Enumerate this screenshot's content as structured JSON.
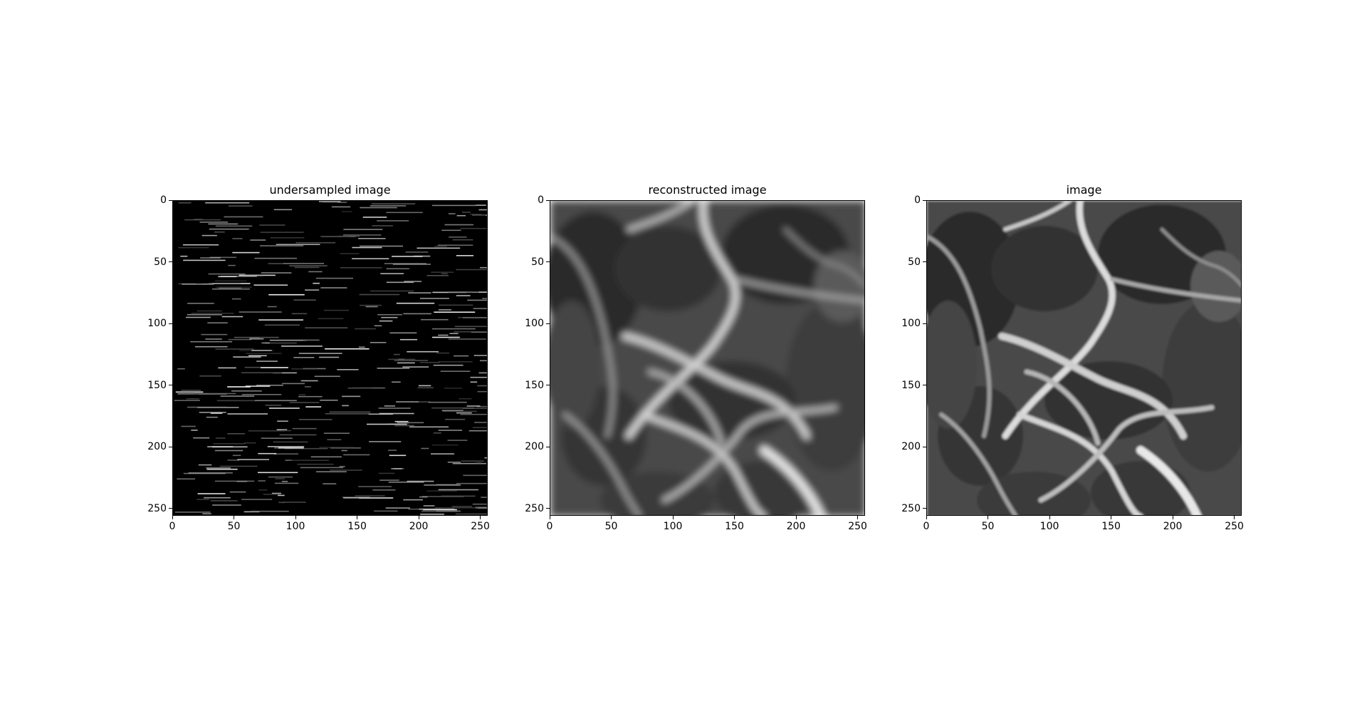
{
  "chart_data": [
    {
      "type": "heatmap",
      "title": "undersampled image",
      "colormap": "gray",
      "background": "#000000",
      "content": "sparse horizontal line segments (masked k-space rows) showing fragments of the image",
      "xlim": [
        0,
        256
      ],
      "ylim": [
        256,
        0
      ],
      "xticks": [
        "0",
        "50",
        "100",
        "150",
        "200",
        "250"
      ],
      "yticks": [
        "0",
        "50",
        "100",
        "150",
        "200",
        "250"
      ],
      "xtick_values": [
        0,
        50,
        100,
        150,
        200,
        250
      ],
      "ytick_values": [
        0,
        50,
        100,
        150,
        200,
        250
      ]
    },
    {
      "type": "heatmap",
      "title": "reconstructed image",
      "colormap": "gray",
      "content": "blurred grayscale texture: dark rounded regions separated by bright ridges",
      "xlim": [
        0,
        256
      ],
      "ylim": [
        256,
        0
      ],
      "xticks": [
        "0",
        "50",
        "100",
        "150",
        "200",
        "250"
      ],
      "yticks": [
        "0",
        "50",
        "100",
        "150",
        "200",
        "250"
      ],
      "xtick_values": [
        0,
        50,
        100,
        150,
        200,
        250
      ],
      "ytick_values": [
        0,
        50,
        100,
        150,
        200,
        250
      ]
    },
    {
      "type": "heatmap",
      "title": "image",
      "colormap": "gray",
      "content": "sharp grayscale texture: dark rounded regions separated by bright ridges",
      "xlim": [
        0,
        256
      ],
      "ylim": [
        256,
        0
      ],
      "xticks": [
        "0",
        "50",
        "100",
        "150",
        "200",
        "250"
      ],
      "yticks": [
        "0",
        "50",
        "100",
        "150",
        "200",
        "250"
      ],
      "xtick_values": [
        0,
        50,
        100,
        150,
        200,
        250
      ],
      "ytick_values": [
        0,
        50,
        100,
        150,
        200,
        250
      ]
    }
  ]
}
